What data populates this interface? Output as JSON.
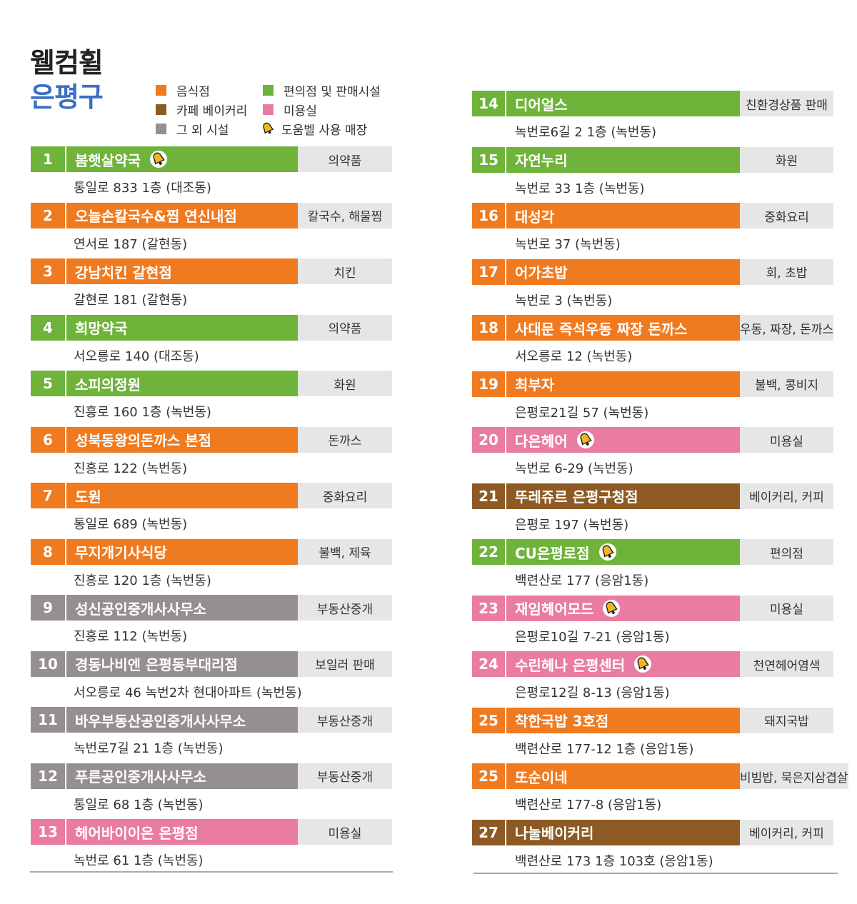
{
  "header": {
    "title_line1": "웰컴휠",
    "title_line2": "은평구"
  },
  "legend": [
    {
      "label": "음식점",
      "color": "#f07a1f",
      "icon": "orange-square"
    },
    {
      "label": "카페 베이커리",
      "color": "#8d5a24",
      "icon": "brown-square"
    },
    {
      "label": "그 외 시설",
      "color": "#958f93",
      "icon": "gray-square"
    },
    {
      "label": "편의점 및 판매시설",
      "color": "#6fb33a",
      "icon": "green-square"
    },
    {
      "label": "미용실",
      "color": "#ea7ba3",
      "icon": "pink-square"
    },
    {
      "label": "도움벨 사용 매장",
      "icon": "bell-icon"
    }
  ],
  "left_entries": [
    {
      "num": "1",
      "name": "봄햇살약국",
      "category": "의약품",
      "address": "통일로 833 1층 (대조동)",
      "type": "green",
      "bell": true
    },
    {
      "num": "2",
      "name": "오늘손칼국수&찜 연신내점",
      "category": "칼국수, 해물찜",
      "address": "연서로 187 (갈현동)",
      "type": "orange",
      "bell": false
    },
    {
      "num": "3",
      "name": "강남치킨 갈현점",
      "category": "치킨",
      "address": "갈현로 181 (갈현동)",
      "type": "orange",
      "bell": false
    },
    {
      "num": "4",
      "name": "희망약국",
      "category": "의약품",
      "address": "서오릉로 140 (대조동)",
      "type": "green",
      "bell": false
    },
    {
      "num": "5",
      "name": "소피의정원",
      "category": "화원",
      "address": "진흥로 160 1층 (녹번동)",
      "type": "green",
      "bell": false
    },
    {
      "num": "6",
      "name": "성북동왕의돈까스 본점",
      "category": "돈까스",
      "address": "진흥로 122 (녹번동)",
      "type": "orange",
      "bell": false
    },
    {
      "num": "7",
      "name": "도원",
      "category": "중화요리",
      "address": "통일로 689 (녹번동)",
      "type": "orange",
      "bell": false
    },
    {
      "num": "8",
      "name": "무지개기사식당",
      "category": "불백, 제육",
      "address": "진흥로 120 1층 (녹번동)",
      "type": "orange",
      "bell": false
    },
    {
      "num": "9",
      "name": "성신공인중개사사무소",
      "category": "부동산중개",
      "address": "진흥로 112 (녹번동)",
      "type": "gray",
      "bell": false
    },
    {
      "num": "10",
      "name": "경동나비엔 은평동부대리점",
      "category": "보일러 판매",
      "address": "서오릉로 46 녹번2차 현대아파트 (녹번동)",
      "type": "gray",
      "bell": false
    },
    {
      "num": "11",
      "name": "바우부동산공인중개사사무소",
      "category": "부동산중개",
      "address": "녹번로7길 21 1층 (녹번동)",
      "type": "gray",
      "bell": false
    },
    {
      "num": "12",
      "name": "푸른공인중개사사무소",
      "category": "부동산중개",
      "address": "통일로 68 1층 (녹번동)",
      "type": "gray",
      "bell": false
    },
    {
      "num": "13",
      "name": "헤어바이이은 은평점",
      "category": "미용실",
      "address": "녹번로 61 1층 (녹번동)",
      "type": "pink",
      "bell": false
    }
  ],
  "right_entries": [
    {
      "num": "14",
      "name": "디어얼스",
      "category": "친환경상품 판매",
      "address": "녹번로6길 2 1층 (녹번동)",
      "type": "green",
      "bell": false
    },
    {
      "num": "15",
      "name": "자연누리",
      "category": "화원",
      "address": "녹번로 33 1층 (녹번동)",
      "type": "green",
      "bell": false
    },
    {
      "num": "16",
      "name": "대성각",
      "category": "중화요리",
      "address": "녹번로 37 (녹번동)",
      "type": "orange",
      "bell": false
    },
    {
      "num": "17",
      "name": "어가초밥",
      "category": "회, 초밥",
      "address": "녹번로 3 (녹번동)",
      "type": "orange",
      "bell": false
    },
    {
      "num": "18",
      "name": "사대문 즉석우동 짜장 돈까스",
      "category": "우동, 짜장, 돈까스",
      "address": "서오릉로 12 (녹번동)",
      "type": "orange",
      "bell": false
    },
    {
      "num": "19",
      "name": "최부자",
      "category": "불백, 콩비지",
      "address": "은평로21길 57 (녹번동)",
      "type": "orange",
      "bell": false
    },
    {
      "num": "20",
      "name": "다은헤어",
      "category": "미용실",
      "address": "녹번로 6-29 (녹번동)",
      "type": "pink",
      "bell": true
    },
    {
      "num": "21",
      "name": "뚜레쥬르 은평구청점",
      "category": "베이커리, 커피",
      "address": "은평로 197 (녹번동)",
      "type": "brown",
      "bell": false
    },
    {
      "num": "22",
      "name": "CU은평로점",
      "category": "편의점",
      "address": "백련산로 177 (응암1동)",
      "type": "green",
      "bell": true
    },
    {
      "num": "23",
      "name": "재임헤어모드",
      "category": "미용실",
      "address": "은평로10길 7-21 (응암1동)",
      "type": "pink",
      "bell": true
    },
    {
      "num": "24",
      "name": "수린헤나 은평센터",
      "category": "천연헤어염색",
      "address": "은평로12길 8-13 (응암1동)",
      "type": "pink",
      "bell": true
    },
    {
      "num": "25",
      "name": "착한국밥 3호점",
      "category": "돼지국밥",
      "address": "백련산로 177-12 1층 (응암1동)",
      "type": "orange",
      "bell": false
    },
    {
      "num": "25",
      "name": "또순이네",
      "category": "비빔밥, 묵은지삼겹살",
      "address": "백련산로 177-8 (응암1동)",
      "type": "orange",
      "bell": false
    },
    {
      "num": "27",
      "name": "나눌베이커리",
      "category": "베이커리, 커피",
      "address": "백련산로 173 1층 103호 (응암1동)",
      "type": "brown",
      "bell": false
    }
  ]
}
